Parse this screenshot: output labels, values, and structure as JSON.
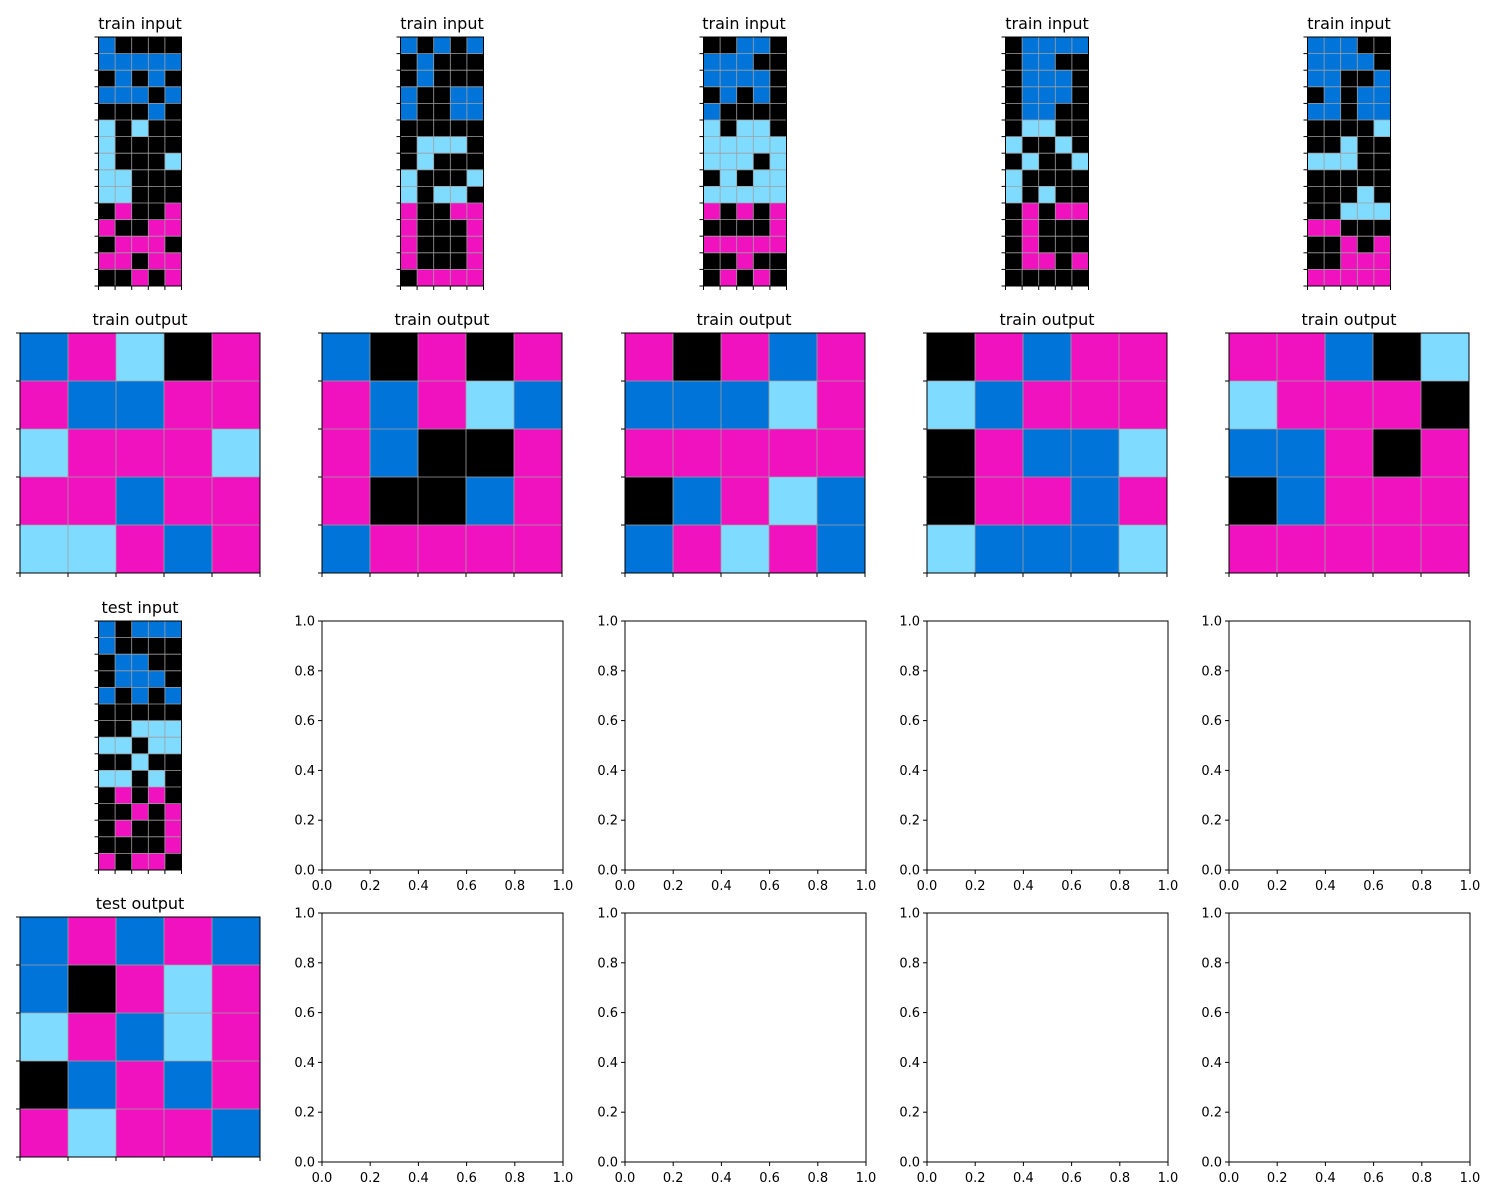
{
  "palette": {
    "0": "#000000",
    "1": "#0074D9",
    "6": "#F012BE",
    "8": "#7FDBFF"
  },
  "grid_line_color": "#A0A0A0",
  "titles": {
    "train_input": "train input",
    "train_output": "train output",
    "test_input": "test input",
    "test_output": "test output"
  },
  "empty_axis_ticks": [
    "0.0",
    "0.2",
    "0.4",
    "0.6",
    "0.8",
    "1.0"
  ],
  "train_inputs": [
    [
      [
        1,
        0,
        0,
        0,
        0
      ],
      [
        1,
        1,
        1,
        1,
        1
      ],
      [
        0,
        1,
        0,
        1,
        0
      ],
      [
        1,
        1,
        1,
        0,
        1
      ],
      [
        0,
        0,
        0,
        1,
        0
      ],
      [
        8,
        0,
        8,
        0,
        0
      ],
      [
        8,
        0,
        0,
        0,
        0
      ],
      [
        8,
        0,
        0,
        0,
        8
      ],
      [
        8,
        8,
        0,
        0,
        0
      ],
      [
        8,
        8,
        0,
        0,
        0
      ],
      [
        0,
        6,
        0,
        0,
        6
      ],
      [
        6,
        0,
        0,
        6,
        6
      ],
      [
        0,
        6,
        6,
        6,
        0
      ],
      [
        6,
        6,
        0,
        6,
        6
      ],
      [
        0,
        0,
        6,
        0,
        6
      ]
    ],
    [
      [
        1,
        0,
        1,
        0,
        1
      ],
      [
        0,
        1,
        0,
        0,
        0
      ],
      [
        0,
        1,
        0,
        0,
        0
      ],
      [
        1,
        0,
        0,
        1,
        1
      ],
      [
        1,
        0,
        0,
        1,
        1
      ],
      [
        0,
        0,
        0,
        0,
        0
      ],
      [
        0,
        8,
        8,
        8,
        0
      ],
      [
        0,
        8,
        0,
        0,
        0
      ],
      [
        8,
        0,
        0,
        0,
        8
      ],
      [
        8,
        0,
        8,
        8,
        0
      ],
      [
        6,
        0,
        0,
        6,
        6
      ],
      [
        6,
        0,
        0,
        0,
        6
      ],
      [
        6,
        0,
        0,
        0,
        6
      ],
      [
        6,
        0,
        0,
        0,
        6
      ],
      [
        0,
        6,
        6,
        6,
        6
      ]
    ],
    [
      [
        0,
        0,
        1,
        1,
        0
      ],
      [
        1,
        1,
        1,
        0,
        0
      ],
      [
        1,
        1,
        1,
        1,
        0
      ],
      [
        0,
        1,
        0,
        1,
        0
      ],
      [
        1,
        0,
        0,
        0,
        0
      ],
      [
        8,
        0,
        8,
        8,
        0
      ],
      [
        8,
        8,
        8,
        8,
        8
      ],
      [
        8,
        8,
        8,
        0,
        8
      ],
      [
        0,
        8,
        0,
        8,
        8
      ],
      [
        8,
        8,
        8,
        8,
        8
      ],
      [
        6,
        0,
        6,
        0,
        6
      ],
      [
        0,
        0,
        0,
        0,
        6
      ],
      [
        6,
        6,
        6,
        6,
        6
      ],
      [
        0,
        0,
        6,
        0,
        0
      ],
      [
        0,
        6,
        0,
        6,
        0
      ]
    ],
    [
      [
        0,
        1,
        1,
        1,
        1
      ],
      [
        0,
        1,
        1,
        0,
        0
      ],
      [
        0,
        1,
        1,
        1,
        0
      ],
      [
        0,
        1,
        1,
        1,
        0
      ],
      [
        0,
        1,
        1,
        0,
        0
      ],
      [
        0,
        8,
        8,
        0,
        0
      ],
      [
        8,
        0,
        0,
        8,
        0
      ],
      [
        0,
        8,
        0,
        0,
        8
      ],
      [
        8,
        0,
        0,
        0,
        0
      ],
      [
        8,
        0,
        8,
        0,
        0
      ],
      [
        0,
        6,
        0,
        6,
        6
      ],
      [
        0,
        6,
        0,
        0,
        0
      ],
      [
        0,
        6,
        0,
        0,
        0
      ],
      [
        0,
        6,
        6,
        0,
        6
      ],
      [
        0,
        0,
        0,
        0,
        0
      ]
    ],
    [
      [
        1,
        1,
        1,
        0,
        0
      ],
      [
        1,
        1,
        1,
        1,
        0
      ],
      [
        1,
        1,
        0,
        0,
        1
      ],
      [
        0,
        1,
        0,
        1,
        1
      ],
      [
        1,
        1,
        0,
        1,
        1
      ],
      [
        0,
        0,
        0,
        0,
        8
      ],
      [
        0,
        0,
        8,
        0,
        0
      ],
      [
        8,
        8,
        8,
        0,
        0
      ],
      [
        0,
        0,
        0,
        0,
        0
      ],
      [
        0,
        0,
        0,
        8,
        0
      ],
      [
        0,
        0,
        8,
        8,
        8
      ],
      [
        6,
        6,
        0,
        0,
        0
      ],
      [
        0,
        0,
        6,
        0,
        6
      ],
      [
        0,
        0,
        6,
        6,
        6
      ],
      [
        6,
        6,
        6,
        6,
        6
      ]
    ]
  ],
  "train_outputs": [
    [
      [
        1,
        6,
        8,
        0,
        6
      ],
      [
        6,
        1,
        1,
        6,
        6
      ],
      [
        8,
        6,
        6,
        6,
        8
      ],
      [
        6,
        6,
        1,
        6,
        6
      ],
      [
        8,
        8,
        6,
        1,
        6
      ]
    ],
    [
      [
        1,
        0,
        6,
        0,
        6
      ],
      [
        6,
        1,
        6,
        8,
        1
      ],
      [
        6,
        1,
        0,
        0,
        6
      ],
      [
        6,
        0,
        0,
        1,
        6
      ],
      [
        1,
        6,
        6,
        6,
        6
      ]
    ],
    [
      [
        6,
        0,
        6,
        1,
        6
      ],
      [
        1,
        1,
        1,
        8,
        6
      ],
      [
        6,
        6,
        6,
        6,
        6
      ],
      [
        0,
        1,
        6,
        8,
        1
      ],
      [
        1,
        6,
        8,
        6,
        1
      ]
    ],
    [
      [
        0,
        6,
        1,
        6,
        6
      ],
      [
        8,
        1,
        6,
        6,
        6
      ],
      [
        0,
        6,
        1,
        1,
        8
      ],
      [
        0,
        6,
        6,
        1,
        6
      ],
      [
        8,
        1,
        1,
        1,
        8
      ]
    ],
    [
      [
        6,
        6,
        1,
        0,
        8
      ],
      [
        8,
        6,
        6,
        6,
        0
      ],
      [
        1,
        1,
        6,
        0,
        6
      ],
      [
        0,
        1,
        6,
        6,
        6
      ],
      [
        6,
        6,
        6,
        6,
        6
      ]
    ]
  ],
  "test_input": [
    [
      1,
      0,
      1,
      1,
      1
    ],
    [
      1,
      0,
      0,
      0,
      0
    ],
    [
      0,
      1,
      1,
      0,
      0
    ],
    [
      0,
      1,
      1,
      1,
      0
    ],
    [
      1,
      0,
      1,
      0,
      1
    ],
    [
      0,
      0,
      0,
      0,
      0
    ],
    [
      0,
      0,
      8,
      8,
      8
    ],
    [
      8,
      8,
      0,
      8,
      8
    ],
    [
      0,
      0,
      8,
      0,
      0
    ],
    [
      8,
      8,
      0,
      8,
      0
    ],
    [
      0,
      6,
      0,
      6,
      0
    ],
    [
      0,
      0,
      6,
      0,
      6
    ],
    [
      0,
      6,
      0,
      0,
      6
    ],
    [
      0,
      0,
      0,
      0,
      6
    ],
    [
      6,
      0,
      6,
      6,
      0
    ]
  ],
  "test_output": [
    [
      1,
      6,
      1,
      6,
      1
    ],
    [
      1,
      0,
      6,
      8,
      6
    ],
    [
      8,
      6,
      1,
      8,
      6
    ],
    [
      0,
      1,
      6,
      1,
      6
    ],
    [
      6,
      8,
      6,
      6,
      1
    ]
  ]
}
